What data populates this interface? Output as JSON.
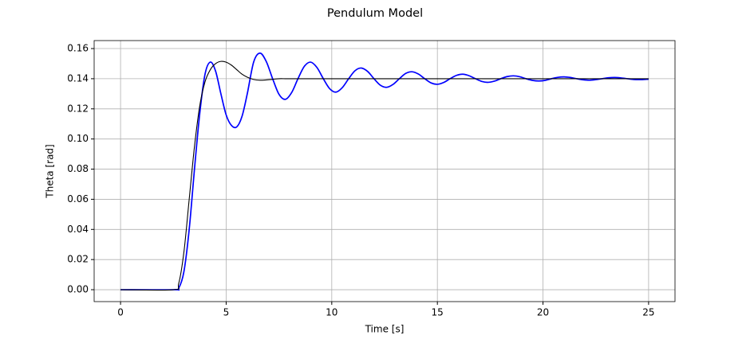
{
  "chart_data": {
    "type": "line",
    "title": "Pendulum Model",
    "x_label": "Time [s]",
    "y_label": "Theta [rad]",
    "x": [
      0,
      2.5,
      2.75,
      3.0,
      3.25,
      3.5,
      3.75,
      4.0,
      4.25,
      4.5,
      4.75,
      5.0,
      5.25,
      5.5,
      5.75,
      6.0,
      6.3,
      6.6,
      6.9,
      7.2,
      7.5,
      7.8,
      8.1,
      8.4,
      8.7,
      9.0,
      9.3,
      9.6,
      9.9,
      10.2,
      10.5,
      10.8,
      11.1,
      11.4,
      11.7,
      12.0,
      12.3,
      12.6,
      12.9,
      13.2,
      13.5,
      13.8,
      14.1,
      14.4,
      14.7,
      15.0,
      15.3,
      15.6,
      15.9,
      16.2,
      16.5,
      16.8,
      17.1,
      17.4,
      17.7,
      18.0,
      18.3,
      18.6,
      18.9,
      19.2,
      19.5,
      19.8,
      20.1,
      20.4,
      20.7,
      21.0,
      21.3,
      21.6,
      21.9,
      22.2,
      22.5,
      22.8,
      23.1,
      23.4,
      23.7,
      24.0,
      24.3,
      24.6,
      24.9,
      25.0
    ],
    "series": [
      {
        "color": "#0000ff",
        "values": [
          0,
          0,
          0.001,
          0.012,
          0.04,
          0.08,
          0.117,
          0.143,
          0.151,
          0.145,
          0.13,
          0.116,
          0.109,
          0.108,
          0.115,
          0.13,
          0.151,
          0.157,
          0.1514,
          0.14,
          0.1297,
          0.1263,
          0.1308,
          0.14,
          0.1482,
          0.151,
          0.1474,
          0.14,
          0.1334,
          0.1311,
          0.1341,
          0.14,
          0.1453,
          0.1471,
          0.1448,
          0.14,
          0.1357,
          0.1343,
          0.1362,
          0.14,
          0.1435,
          0.1446,
          0.1431,
          0.14,
          0.1372,
          0.1363,
          0.1375,
          0.14,
          0.1422,
          0.143,
          0.142,
          0.14,
          0.1382,
          0.1376,
          0.1384,
          0.14,
          0.1414,
          0.1419,
          0.1413,
          0.14,
          0.1389,
          0.1385,
          0.1389,
          0.14,
          0.1409,
          0.1412,
          0.1408,
          0.14,
          0.1393,
          0.139,
          0.1394,
          0.14,
          0.1406,
          0.1408,
          0.1405,
          0.14,
          0.1395,
          0.1394,
          0.1396,
          0.1397
        ]
      },
      {
        "color": "#000000",
        "values": [
          0,
          0,
          0.004,
          0.025,
          0.06,
          0.095,
          0.122,
          0.138,
          0.146,
          0.15,
          0.1515,
          0.151,
          0.149,
          0.146,
          0.143,
          0.141,
          0.1395,
          0.139,
          0.1392,
          0.1396,
          0.14,
          0.14,
          0.14,
          0.14,
          0.14,
          0.14,
          0.14,
          0.14,
          0.14,
          0.14,
          0.14,
          0.14,
          0.14,
          0.14,
          0.14,
          0.14,
          0.14,
          0.14,
          0.14,
          0.14,
          0.14,
          0.14,
          0.14,
          0.14,
          0.14,
          0.14,
          0.14,
          0.14,
          0.14,
          0.14,
          0.14,
          0.14,
          0.14,
          0.14,
          0.14,
          0.14,
          0.14,
          0.14,
          0.14,
          0.14,
          0.14,
          0.14,
          0.14,
          0.14,
          0.14,
          0.14,
          0.14,
          0.14,
          0.14,
          0.14,
          0.14,
          0.14,
          0.14,
          0.14,
          0.14,
          0.14,
          0.14,
          0.14,
          0.14,
          0.14
        ]
      }
    ],
    "xlim": [
      -1.25,
      26.25
    ],
    "ylim": [
      -0.0079,
      0.1653
    ],
    "xticks": [
      0,
      5,
      10,
      15,
      20,
      25
    ],
    "yticks": [
      {
        "value": 0,
        "label": "0.00"
      },
      {
        "value": 0.02,
        "label": "0.02"
      },
      {
        "value": 0.04,
        "label": "0.04"
      },
      {
        "value": 0.06,
        "label": "0.06"
      },
      {
        "value": 0.08,
        "label": "0.08"
      },
      {
        "value": 0.1,
        "label": "0.10"
      },
      {
        "value": 0.12,
        "label": "0.12"
      },
      {
        "value": 0.14,
        "label": "0.14"
      },
      {
        "value": 0.16,
        "label": "0.16"
      }
    ],
    "grid": true
  }
}
